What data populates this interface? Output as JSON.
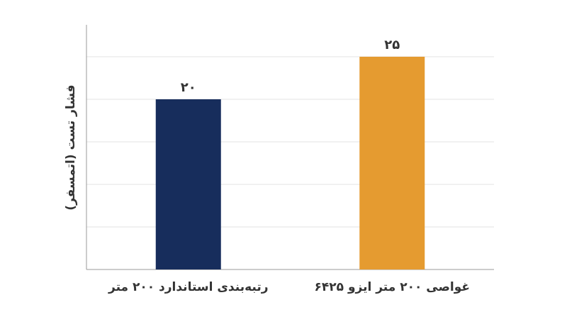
{
  "chart_data": {
    "type": "bar",
    "y_label": "فشار تست (اتمسفر)",
    "categories": [
      "رتبه‌بندی استاندارد ۲۰۰ متر",
      "غواصی ۲۰۰ متر ایزو ۶۴۲۵"
    ],
    "values": [
      20,
      25
    ],
    "value_labels": [
      "۲۰",
      "۲۵"
    ],
    "colors": [
      "#172d5c",
      "#e59b30"
    ],
    "ylim": [
      0,
      29
    ],
    "ygrid": [
      5,
      10,
      15,
      20,
      25
    ],
    "grid": true
  }
}
